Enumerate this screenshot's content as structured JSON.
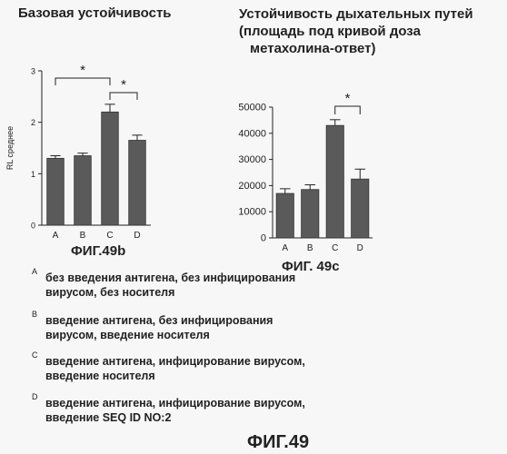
{
  "chart_data": [
    {
      "type": "bar",
      "title": "Базовая устойчивость",
      "ylabel": "RL среднее",
      "xlabel": "",
      "categories": [
        "A",
        "B",
        "C",
        "D"
      ],
      "values": [
        1.3,
        1.35,
        2.2,
        1.65
      ],
      "errors": [
        0.05,
        0.05,
        0.15,
        0.1
      ],
      "ylim": [
        0,
        3
      ],
      "yticks": [
        "0",
        "1",
        "2",
        "3"
      ],
      "annotations": [
        {
          "from": "A",
          "to": "C",
          "text": "*"
        },
        {
          "from": "C",
          "to": "D",
          "text": "*"
        }
      ],
      "figure_label": "ФИГ.49b",
      "bar_color": "#5a5a5a"
    },
    {
      "type": "bar",
      "title": "Устойчивость дыхательных путей (площадь под кривой доза метахолина-ответ)",
      "title_lines": [
        "Устойчивость дыхательных путей",
        "(площадь под кривой доза",
        "метахолина-ответ)"
      ],
      "ylabel": "",
      "xlabel": "",
      "categories": [
        "A",
        "B",
        "C",
        "D"
      ],
      "values": [
        17000,
        18500,
        43000,
        22500
      ],
      "errors": [
        1800,
        1800,
        2200,
        3800
      ],
      "ylim": [
        0,
        50000
      ],
      "yticks": [
        "0",
        "10000",
        "20000",
        "30000",
        "40000",
        "50000"
      ],
      "annotations": [
        {
          "from": "C",
          "to": "D",
          "text": "*"
        }
      ],
      "figure_label": "ФИГ. 49c",
      "bar_color": "#5a5a5a"
    }
  ],
  "legend": [
    {
      "letter": "A",
      "lines": [
        "без введения антигена, без инфицирования",
        "вирусом, без носителя"
      ]
    },
    {
      "letter": "B",
      "lines": [
        "введение антигена, без инфицирования",
        "вирусом, введение носителя"
      ]
    },
    {
      "letter": "C",
      "lines": [
        "введение антигена, инфицирование вирусом,",
        "введение носителя"
      ]
    },
    {
      "letter": "D",
      "lines": [
        "введение антигена, инфицирование вирусом,",
        "введение SEQ ID NO:2"
      ]
    }
  ],
  "figure_title": "ФИГ.49"
}
